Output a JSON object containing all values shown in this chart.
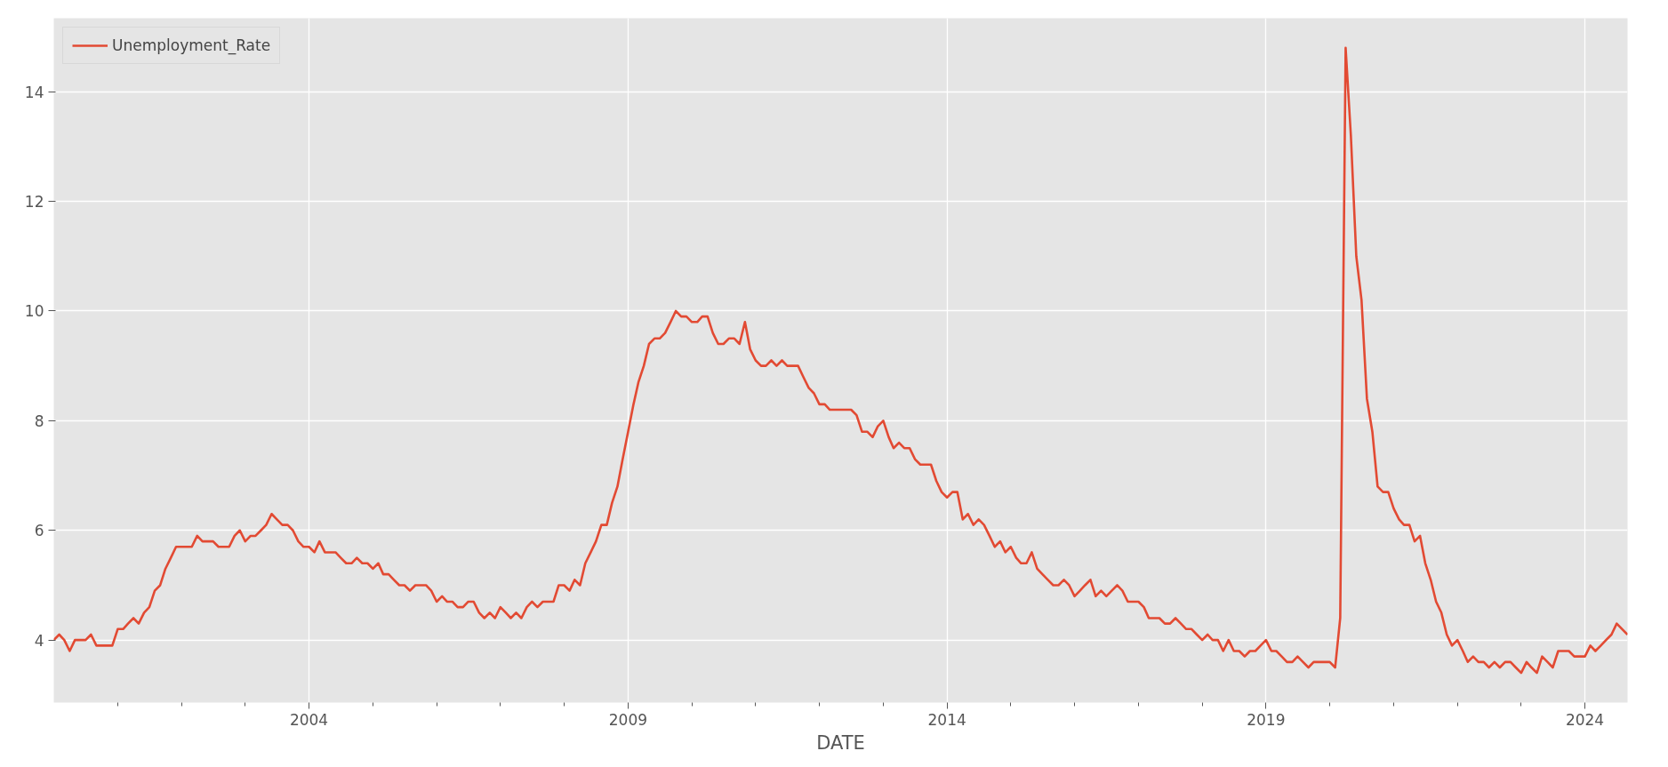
{
  "chart_data": {
    "type": "line",
    "xlabel": "DATE",
    "legend": "top left",
    "grid": true,
    "marker": "none",
    "line_style": "solid",
    "x": [
      "2000-01",
      "2000-02",
      "2000-03",
      "2000-04",
      "2000-05",
      "2000-06",
      "2000-07",
      "2000-08",
      "2000-09",
      "2000-10",
      "2000-11",
      "2000-12",
      "2001-01",
      "2001-02",
      "2001-03",
      "2001-04",
      "2001-05",
      "2001-06",
      "2001-07",
      "2001-08",
      "2001-09",
      "2001-10",
      "2001-11",
      "2001-12",
      "2002-01",
      "2002-02",
      "2002-03",
      "2002-04",
      "2002-05",
      "2002-06",
      "2002-07",
      "2002-08",
      "2002-09",
      "2002-10",
      "2002-11",
      "2002-12",
      "2003-01",
      "2003-02",
      "2003-03",
      "2003-04",
      "2003-05",
      "2003-06",
      "2003-07",
      "2003-08",
      "2003-09",
      "2003-10",
      "2003-11",
      "2003-12",
      "2004-01",
      "2004-02",
      "2004-03",
      "2004-04",
      "2004-05",
      "2004-06",
      "2004-07",
      "2004-08",
      "2004-09",
      "2004-10",
      "2004-11",
      "2004-12",
      "2005-01",
      "2005-02",
      "2005-03",
      "2005-04",
      "2005-05",
      "2005-06",
      "2005-07",
      "2005-08",
      "2005-09",
      "2005-10",
      "2005-11",
      "2005-12",
      "2006-01",
      "2006-02",
      "2006-03",
      "2006-04",
      "2006-05",
      "2006-06",
      "2006-07",
      "2006-08",
      "2006-09",
      "2006-10",
      "2006-11",
      "2006-12",
      "2007-01",
      "2007-02",
      "2007-03",
      "2007-04",
      "2007-05",
      "2007-06",
      "2007-07",
      "2007-08",
      "2007-09",
      "2007-10",
      "2007-11",
      "2007-12",
      "2008-01",
      "2008-02",
      "2008-03",
      "2008-04",
      "2008-05",
      "2008-06",
      "2008-07",
      "2008-08",
      "2008-09",
      "2008-10",
      "2008-11",
      "2008-12",
      "2009-01",
      "2009-02",
      "2009-03",
      "2009-04",
      "2009-05",
      "2009-06",
      "2009-07",
      "2009-08",
      "2009-09",
      "2009-10",
      "2009-11",
      "2009-12",
      "2010-01",
      "2010-02",
      "2010-03",
      "2010-04",
      "2010-05",
      "2010-06",
      "2010-07",
      "2010-08",
      "2010-09",
      "2010-10",
      "2010-11",
      "2010-12",
      "2011-01",
      "2011-02",
      "2011-03",
      "2011-04",
      "2011-05",
      "2011-06",
      "2011-07",
      "2011-08",
      "2011-09",
      "2011-10",
      "2011-11",
      "2011-12",
      "2012-01",
      "2012-02",
      "2012-03",
      "2012-04",
      "2012-05",
      "2012-06",
      "2012-07",
      "2012-08",
      "2012-09",
      "2012-10",
      "2012-11",
      "2012-12",
      "2013-01",
      "2013-02",
      "2013-03",
      "2013-04",
      "2013-05",
      "2013-06",
      "2013-07",
      "2013-08",
      "2013-09",
      "2013-10",
      "2013-11",
      "2013-12",
      "2014-01",
      "2014-02",
      "2014-03",
      "2014-04",
      "2014-05",
      "2014-06",
      "2014-07",
      "2014-08",
      "2014-09",
      "2014-10",
      "2014-11",
      "2014-12",
      "2015-01",
      "2015-02",
      "2015-03",
      "2015-04",
      "2015-05",
      "2015-06",
      "2015-07",
      "2015-08",
      "2015-09",
      "2015-10",
      "2015-11",
      "2015-12",
      "2016-01",
      "2016-02",
      "2016-03",
      "2016-04",
      "2016-05",
      "2016-06",
      "2016-07",
      "2016-08",
      "2016-09",
      "2016-10",
      "2016-11",
      "2016-12",
      "2017-01",
      "2017-02",
      "2017-03",
      "2017-04",
      "2017-05",
      "2017-06",
      "2017-07",
      "2017-08",
      "2017-09",
      "2017-10",
      "2017-11",
      "2017-12",
      "2018-01",
      "2018-02",
      "2018-03",
      "2018-04",
      "2018-05",
      "2018-06",
      "2018-07",
      "2018-08",
      "2018-09",
      "2018-10",
      "2018-11",
      "2018-12",
      "2019-01",
      "2019-02",
      "2019-03",
      "2019-04",
      "2019-05",
      "2019-06",
      "2019-07",
      "2019-08",
      "2019-09",
      "2019-10",
      "2019-11",
      "2019-12",
      "2020-01",
      "2020-02",
      "2020-03",
      "2020-04",
      "2020-05",
      "2020-06",
      "2020-07",
      "2020-08",
      "2020-09",
      "2020-10",
      "2020-11",
      "2020-12",
      "2021-01",
      "2021-02",
      "2021-03",
      "2021-04",
      "2021-05",
      "2021-06",
      "2021-07",
      "2021-08",
      "2021-09",
      "2021-10",
      "2021-11",
      "2021-12",
      "2022-01",
      "2022-02",
      "2022-03",
      "2022-04",
      "2022-05",
      "2022-06",
      "2022-07",
      "2022-08",
      "2022-09",
      "2022-10",
      "2022-11",
      "2022-12",
      "2023-01",
      "2023-02",
      "2023-03",
      "2023-04",
      "2023-05",
      "2023-06",
      "2023-07",
      "2023-08",
      "2023-09",
      "2023-10",
      "2023-11",
      "2023-12",
      "2024-01",
      "2024-02",
      "2024-03",
      "2024-04",
      "2024-05",
      "2024-06",
      "2024-07",
      "2024-08",
      "2024-09"
    ],
    "series": [
      {
        "name": "Unemployment_Rate",
        "color": "#e24a33",
        "values": [
          4.0,
          4.1,
          4.0,
          3.8,
          4.0,
          4.0,
          4.0,
          4.1,
          3.9,
          3.9,
          3.9,
          3.9,
          4.2,
          4.2,
          4.3,
          4.4,
          4.3,
          4.5,
          4.6,
          4.9,
          5.0,
          5.3,
          5.5,
          5.7,
          5.7,
          5.7,
          5.7,
          5.9,
          5.8,
          5.8,
          5.8,
          5.7,
          5.7,
          5.7,
          5.9,
          6.0,
          5.8,
          5.9,
          5.9,
          6.0,
          6.1,
          6.3,
          6.2,
          6.1,
          6.1,
          6.0,
          5.8,
          5.7,
          5.7,
          5.6,
          5.8,
          5.6,
          5.6,
          5.6,
          5.5,
          5.4,
          5.4,
          5.5,
          5.4,
          5.4,
          5.3,
          5.4,
          5.2,
          5.2,
          5.1,
          5.0,
          5.0,
          4.9,
          5.0,
          5.0,
          5.0,
          4.9,
          4.7,
          4.8,
          4.7,
          4.7,
          4.6,
          4.6,
          4.7,
          4.7,
          4.5,
          4.4,
          4.5,
          4.4,
          4.6,
          4.5,
          4.4,
          4.5,
          4.4,
          4.6,
          4.7,
          4.6,
          4.7,
          4.7,
          4.7,
          5.0,
          5.0,
          4.9,
          5.1,
          5.0,
          5.4,
          5.6,
          5.8,
          6.1,
          6.1,
          6.5,
          6.8,
          7.3,
          7.8,
          8.3,
          8.7,
          9.0,
          9.4,
          9.5,
          9.5,
          9.6,
          9.8,
          10.0,
          9.9,
          9.9,
          9.8,
          9.8,
          9.9,
          9.9,
          9.6,
          9.4,
          9.4,
          9.5,
          9.5,
          9.4,
          9.8,
          9.3,
          9.1,
          9.0,
          9.0,
          9.1,
          9.0,
          9.1,
          9.0,
          9.0,
          9.0,
          8.8,
          8.6,
          8.5,
          8.3,
          8.3,
          8.2,
          8.2,
          8.2,
          8.2,
          8.2,
          8.1,
          7.8,
          7.8,
          7.7,
          7.9,
          8.0,
          7.7,
          7.5,
          7.6,
          7.5,
          7.5,
          7.3,
          7.2,
          7.2,
          7.2,
          6.9,
          6.7,
          6.6,
          6.7,
          6.7,
          6.2,
          6.3,
          6.1,
          6.2,
          6.1,
          5.9,
          5.7,
          5.8,
          5.6,
          5.7,
          5.5,
          5.4,
          5.4,
          5.6,
          5.3,
          5.2,
          5.1,
          5.0,
          5.0,
          5.1,
          5.0,
          4.8,
          4.9,
          5.0,
          5.1,
          4.8,
          4.9,
          4.8,
          4.9,
          5.0,
          4.9,
          4.7,
          4.7,
          4.7,
          4.6,
          4.4,
          4.4,
          4.4,
          4.3,
          4.3,
          4.4,
          4.3,
          4.2,
          4.2,
          4.1,
          4.0,
          4.1,
          4.0,
          4.0,
          3.8,
          4.0,
          3.8,
          3.8,
          3.7,
          3.8,
          3.8,
          3.9,
          4.0,
          3.8,
          3.8,
          3.7,
          3.6,
          3.6,
          3.7,
          3.6,
          3.5,
          3.6,
          3.6,
          3.6,
          3.6,
          3.5,
          4.4,
          14.8,
          13.2,
          11.0,
          10.2,
          8.4,
          7.8,
          6.8,
          6.7,
          6.7,
          6.4,
          6.2,
          6.1,
          6.1,
          5.8,
          5.9,
          5.4,
          5.1,
          4.7,
          4.5,
          4.1,
          3.9,
          4.0,
          3.8,
          3.6,
          3.7,
          3.6,
          3.6,
          3.5,
          3.6,
          3.5,
          3.6,
          3.6,
          3.5,
          3.4,
          3.6,
          3.5,
          3.4,
          3.7,
          3.6,
          3.5,
          3.8,
          3.8,
          3.8,
          3.7,
          3.7,
          3.7,
          3.9,
          3.8,
          3.9,
          4.0,
          4.1,
          4.3,
          4.2,
          4.1
        ]
      }
    ],
    "xlim": [
      "2000-01",
      "2024-09"
    ],
    "xticks": [
      {
        "value": "2001-01",
        "label": null
      },
      {
        "value": "2002-01",
        "label": null
      },
      {
        "value": "2003-01",
        "label": null
      },
      {
        "value": "2004-01",
        "label": "2004"
      },
      {
        "value": "2005-01",
        "label": null
      },
      {
        "value": "2006-01",
        "label": null
      },
      {
        "value": "2007-01",
        "label": null
      },
      {
        "value": "2008-01",
        "label": null
      },
      {
        "value": "2009-01",
        "label": "2009"
      },
      {
        "value": "2010-01",
        "label": null
      },
      {
        "value": "2011-01",
        "label": null
      },
      {
        "value": "2012-01",
        "label": null
      },
      {
        "value": "2013-01",
        "label": null
      },
      {
        "value": "2014-01",
        "label": "2014"
      },
      {
        "value": "2015-01",
        "label": null
      },
      {
        "value": "2016-01",
        "label": null
      },
      {
        "value": "2017-01",
        "label": null
      },
      {
        "value": "2018-01",
        "label": null
      },
      {
        "value": "2019-01",
        "label": "2019"
      },
      {
        "value": "2020-01",
        "label": null
      },
      {
        "value": "2021-01",
        "label": null
      },
      {
        "value": "2022-01",
        "label": null
      },
      {
        "value": "2023-01",
        "label": null
      },
      {
        "value": "2024-01",
        "label": "2024"
      }
    ],
    "ylim": [
      2.86,
      15.34
    ],
    "yticks": [
      4,
      6,
      8,
      10,
      12,
      14
    ]
  }
}
